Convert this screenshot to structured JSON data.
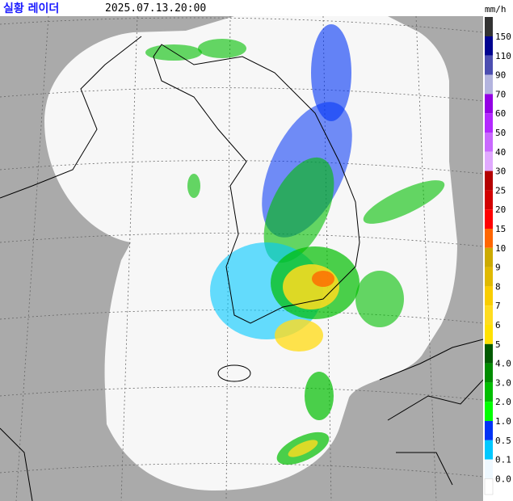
{
  "header": {
    "title": "실황 레이더",
    "time": "2025.07.13.20:00",
    "unit": "mm/h"
  },
  "legend": [
    {
      "label": "150",
      "color": "#333333"
    },
    {
      "label": "110",
      "color": "#000390"
    },
    {
      "label": "90",
      "color": "#4c4eb1"
    },
    {
      "label": "70",
      "color": "#b3b4de"
    },
    {
      "label": "60",
      "color": "#9300e4"
    },
    {
      "label": "50",
      "color": "#b329ff"
    },
    {
      "label": "40",
      "color": "#c969ff"
    },
    {
      "label": "30",
      "color": "#e0a9ff"
    },
    {
      "label": "25",
      "color": "#b40000"
    },
    {
      "label": "20",
      "color": "#d20000"
    },
    {
      "label": "15",
      "color": "#ff0000"
    },
    {
      "label": "10",
      "color": "#ff6600"
    },
    {
      "label": "9",
      "color": "#ccaa00"
    },
    {
      "label": "8",
      "color": "#e0b900"
    },
    {
      "label": "7",
      "color": "#f9cd00"
    },
    {
      "label": "6",
      "color": "#ffdc1f"
    },
    {
      "label": "5",
      "color": "#ffe100"
    },
    {
      "label": "4.0",
      "color": "#005a00"
    },
    {
      "label": "3.0",
      "color": "#008c00"
    },
    {
      "label": "2.0",
      "color": "#00be00"
    },
    {
      "label": "1.0",
      "color": "#00ff00"
    },
    {
      "label": "0.5",
      "color": "#0033f5"
    },
    {
      "label": "0.1",
      "color": "#00c8ff"
    },
    {
      "label": "0.0",
      "color": "#eef8ff"
    }
  ]
}
